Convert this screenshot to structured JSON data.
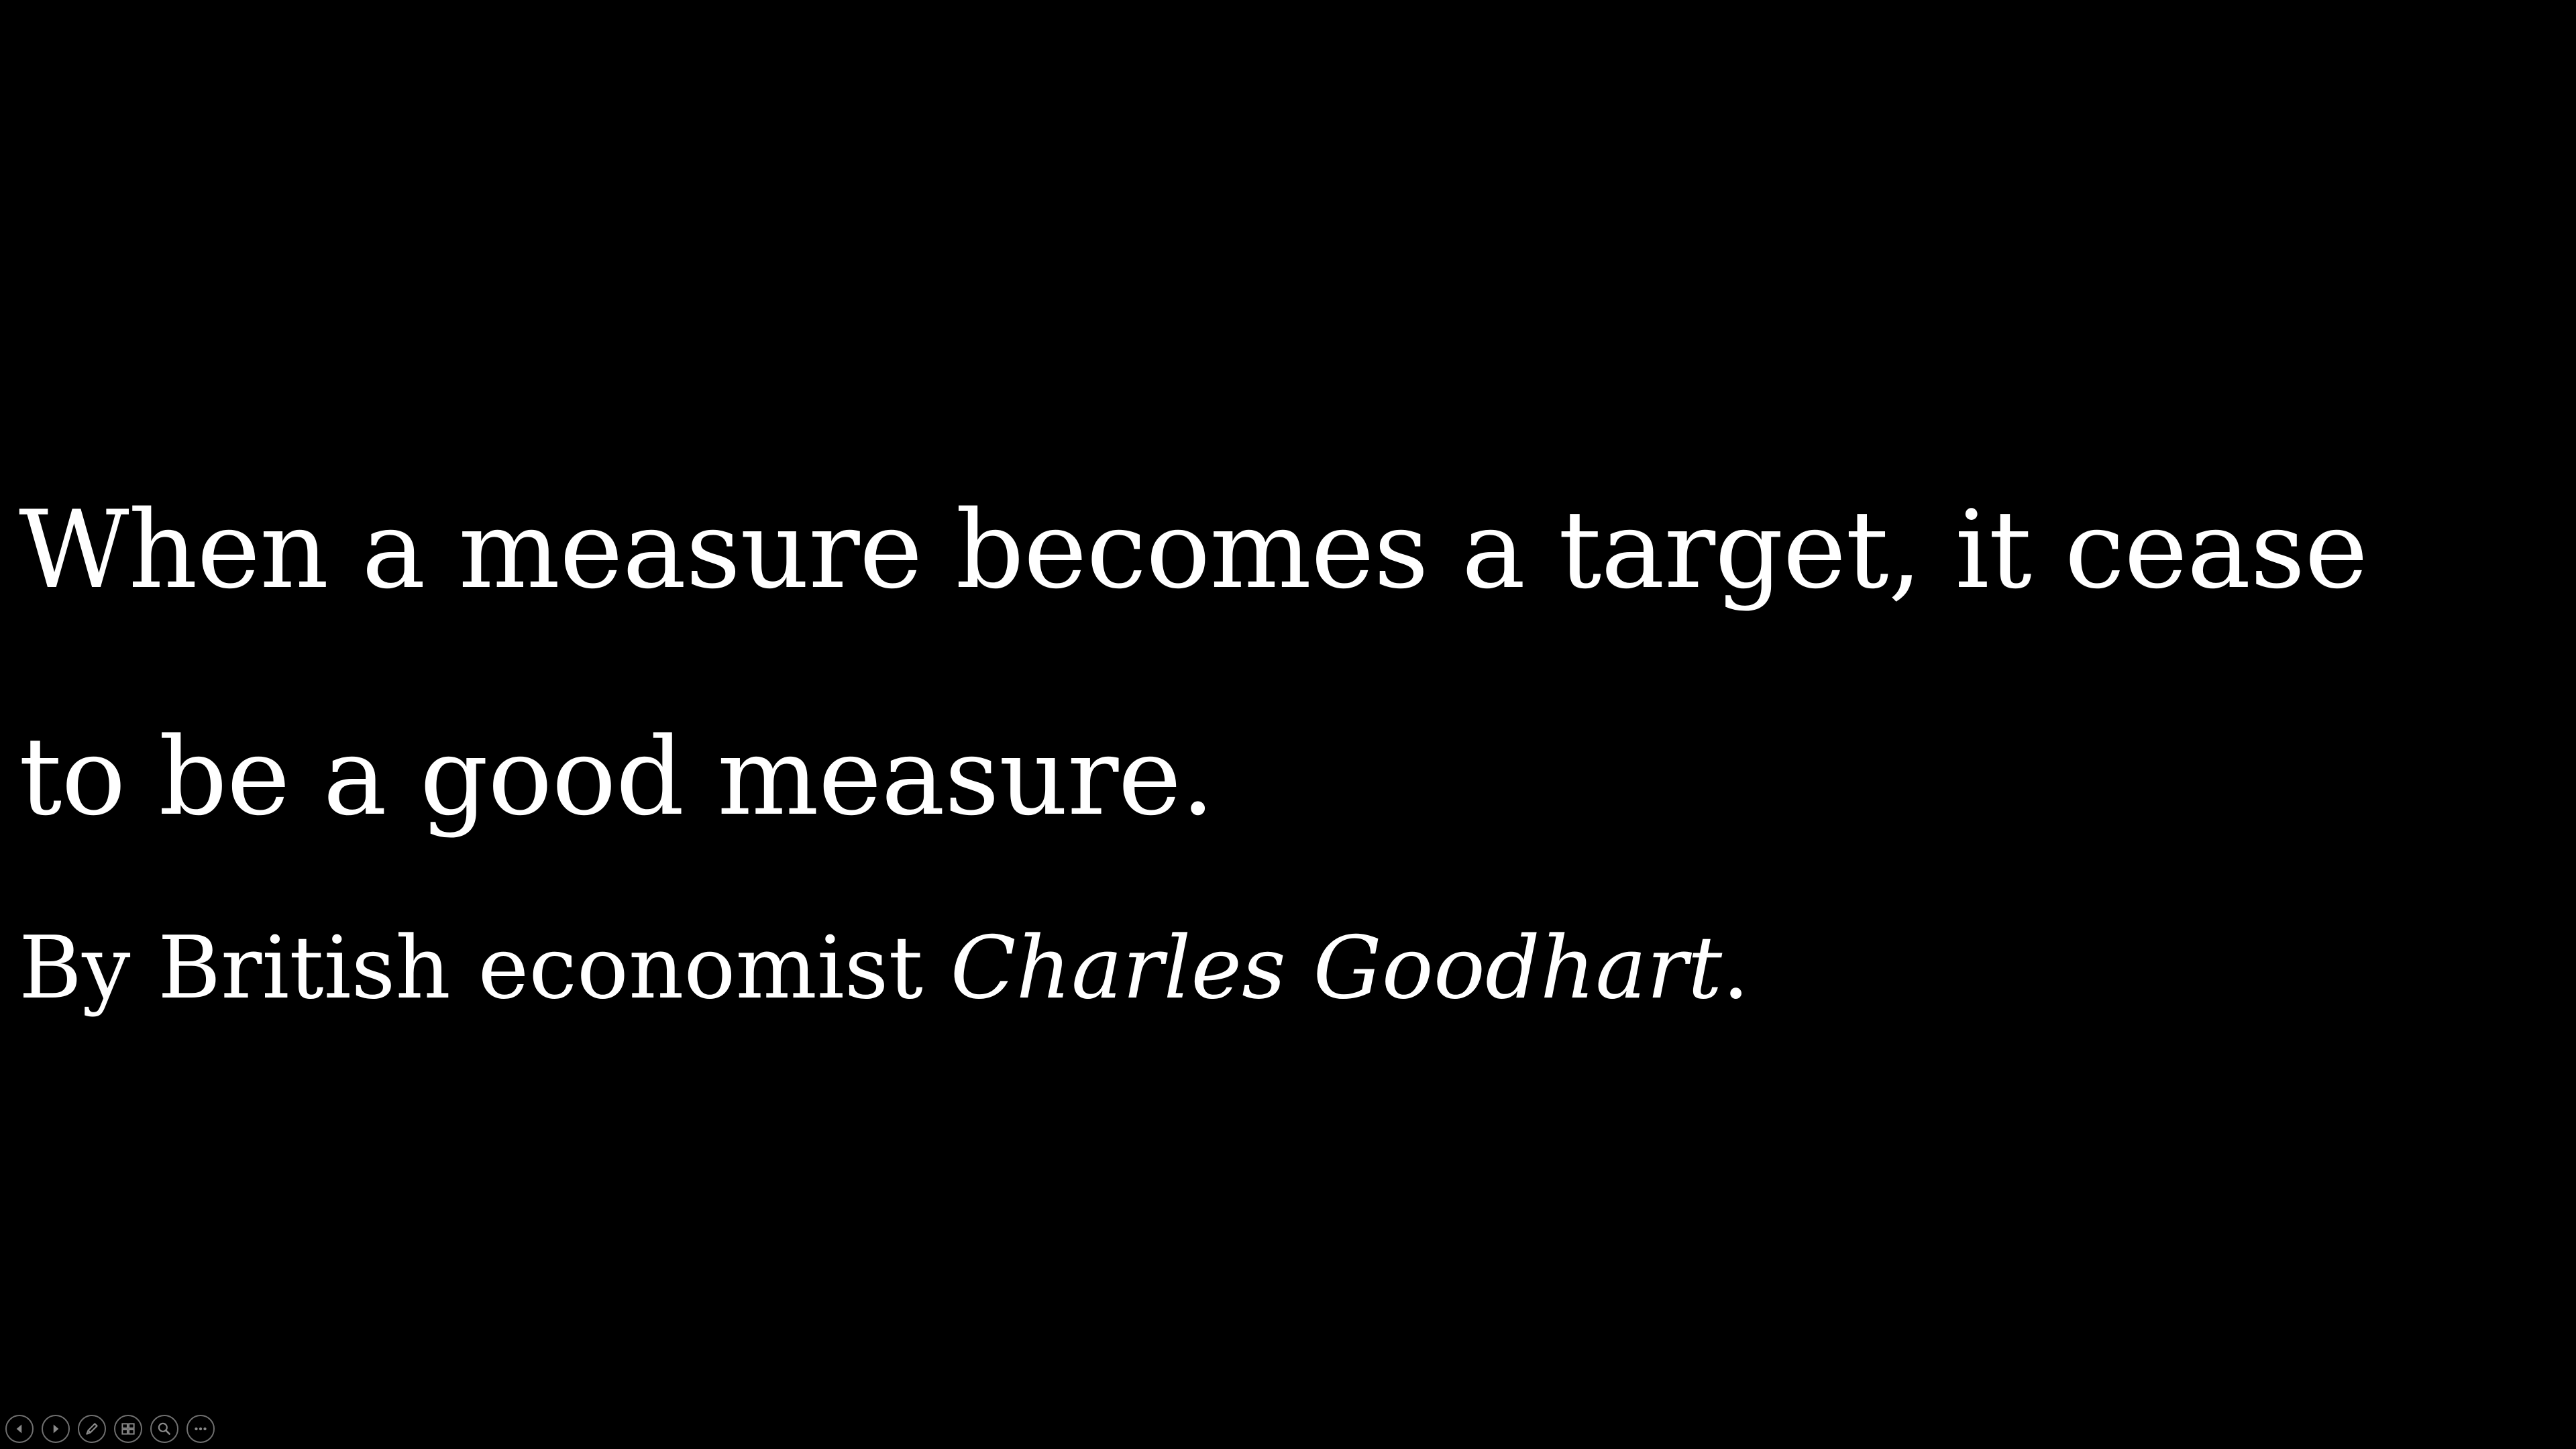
{
  "slide": {
    "quote_line_1": "When a measure becomes a target, it cease",
    "quote_line_2": "to be a good measure.",
    "attribution_prefix": "By British economist ",
    "attribution_name": "Charles Goodhart",
    "attribution_suffix": "."
  },
  "controls": [
    {
      "name": "previous-slide",
      "icon": "arrow-left-icon"
    },
    {
      "name": "next-slide",
      "icon": "arrow-right-icon"
    },
    {
      "name": "pen-tool",
      "icon": "pen-icon"
    },
    {
      "name": "see-all-slides",
      "icon": "slides-grid-icon"
    },
    {
      "name": "zoom",
      "icon": "magnifier-icon"
    },
    {
      "name": "more-options",
      "icon": "more-icon"
    }
  ],
  "colors": {
    "background": "#000000",
    "text": "#ffffff",
    "control_outline": "#6f6f6f"
  }
}
